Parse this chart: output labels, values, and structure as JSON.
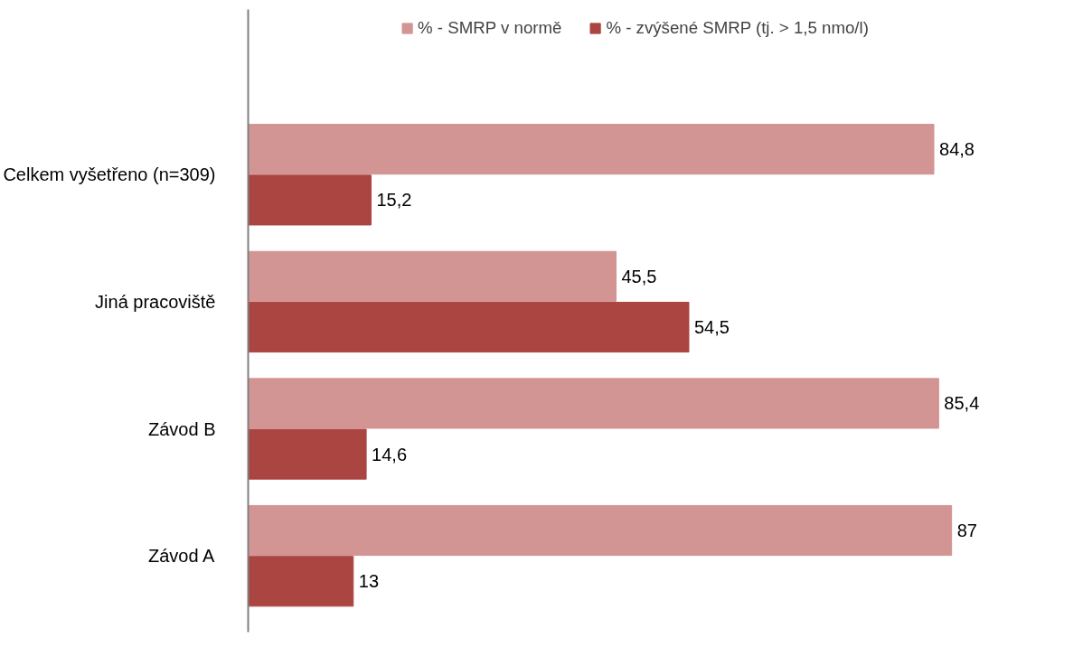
{
  "chart_data": {
    "type": "bar",
    "orientation": "horizontal",
    "categories": [
      "Celkem vyšetřeno (n=309)",
      "Jiná pracoviště",
      "Závod B",
      "Závod A"
    ],
    "series": [
      {
        "name": "% - SMRP v normě",
        "color": "#d39494",
        "values": [
          84.8,
          45.5,
          85.4,
          87
        ],
        "value_labels": [
          "84,8",
          "45,5",
          "85,4",
          "87"
        ]
      },
      {
        "name": "% - zvýšené SMRP (tj. > 1,5 nmo/l)",
        "color": "#ab4542",
        "values": [
          15.2,
          54.5,
          14.6,
          13
        ],
        "value_labels": [
          "15,2",
          "54,5",
          "14,6",
          "13"
        ]
      }
    ],
    "legend": "top"
  }
}
